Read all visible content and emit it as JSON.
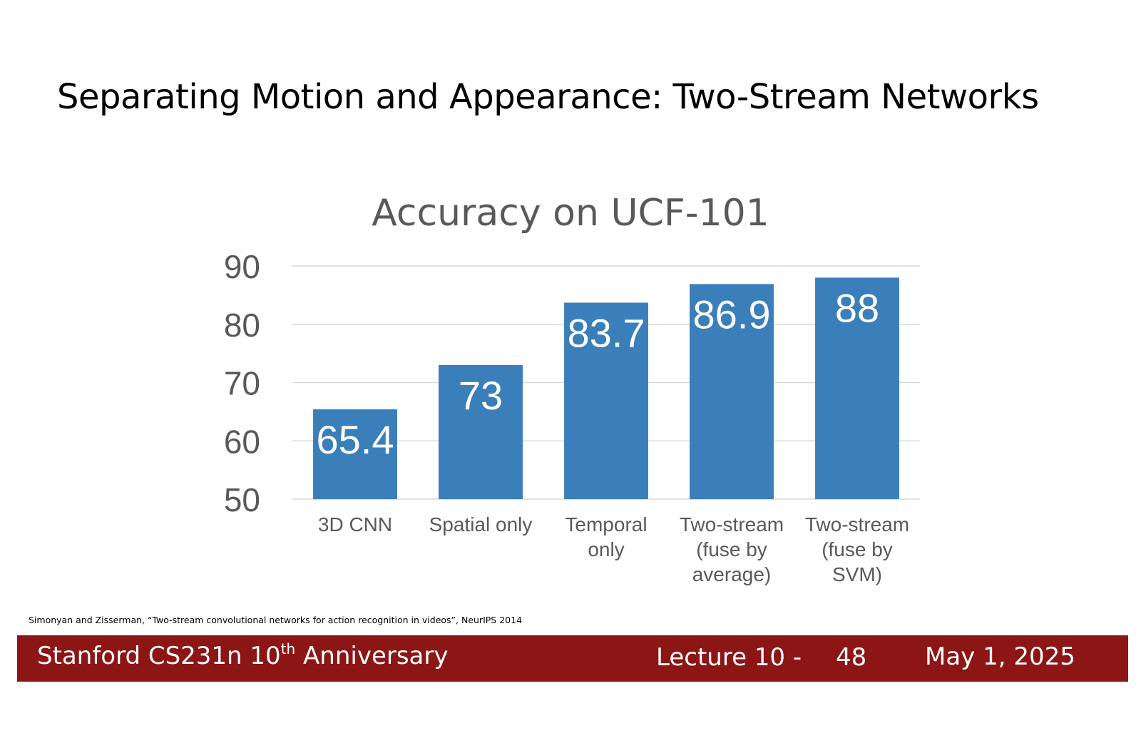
{
  "slide": {
    "title": "Separating Motion and Appearance: Two-Stream Networks",
    "citation": "Simonyan and Zisserman, “Two-stream convolutional networks for action recognition in videos”, NeurIPS 2014"
  },
  "footer": {
    "course_prefix": "Stanford CS231n 10",
    "course_superscript": "th",
    "course_suffix": " Anniversary",
    "lecture": "Lecture 10 -",
    "page": "48",
    "date": "May 1, 2025",
    "bar_color": "#8c1515"
  },
  "chart_data": {
    "type": "bar",
    "title": "Accuracy on UCF-101",
    "xlabel": "",
    "ylabel": "",
    "categories": [
      [
        "3D CNN"
      ],
      [
        "Spatial only"
      ],
      [
        "Temporal",
        "only"
      ],
      [
        "Two-stream",
        "(fuse by",
        "average)"
      ],
      [
        "Two-stream",
        "(fuse by",
        "SVM)"
      ]
    ],
    "values": [
      65.4,
      73,
      83.7,
      86.9,
      88
    ],
    "data_labels": [
      "65.4",
      "73",
      "83.7",
      "86.9",
      "88"
    ],
    "ylim": [
      50,
      90
    ],
    "yticks": [
      50,
      60,
      70,
      80,
      90
    ],
    "grid": true,
    "legend": "none",
    "bar_color": "#3a7fba",
    "grid_color": "#d9d9d9",
    "text_color": "#595959"
  }
}
